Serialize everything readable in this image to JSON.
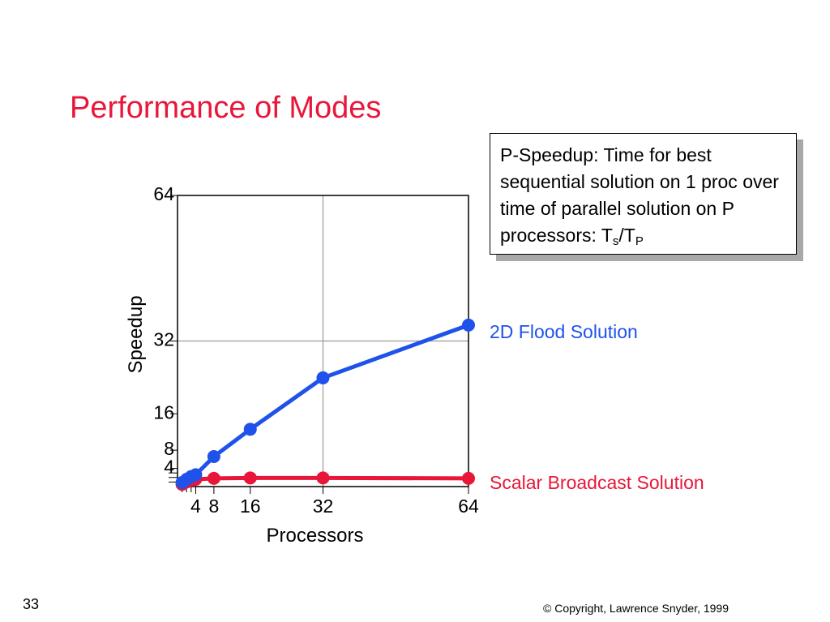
{
  "slide": {
    "title": "Performance of Modes",
    "number": "33",
    "copyright": "© Copyright, Lawrence Snyder, 1999"
  },
  "definition": {
    "text": "P-Speedup: Time for best sequential solution on 1 proc over time of parallel solution on P processors: T",
    "sub1": "s",
    "mid": "/T",
    "sub2": "P"
  },
  "colors": {
    "title": "#e8173a",
    "flood": "#1f52eb",
    "scalar": "#e8173a",
    "grid": "#9a9a9a"
  },
  "chart_data": {
    "type": "line",
    "xlabel": "Processors",
    "ylabel": "Speedup",
    "xlim": [
      0,
      64
    ],
    "ylim": [
      0,
      64
    ],
    "xticks": [
      4,
      8,
      16,
      32,
      64
    ],
    "xtick_labels": [
      "4",
      "8",
      "16",
      "32",
      "64"
    ],
    "yticks": [
      4,
      8,
      16,
      32,
      64
    ],
    "ytick_labels": [
      "4",
      "8",
      "16",
      "32",
      "64"
    ],
    "grid": true,
    "series": [
      {
        "name": "2D Flood Solution",
        "color": "#1f52eb",
        "x": [
          1,
          2,
          3,
          4,
          8,
          16,
          32,
          64
        ],
        "y": [
          0.9,
          1.6,
          2.2,
          2.6,
          6.6,
          12.6,
          23.9,
          35.5
        ]
      },
      {
        "name": "Scalar Broadcast Solution",
        "color": "#e8173a",
        "x": [
          1,
          2,
          3,
          4,
          8,
          16,
          32,
          64
        ],
        "y": [
          0.5,
          1.0,
          1.4,
          1.6,
          1.8,
          1.9,
          1.9,
          1.8
        ]
      }
    ]
  }
}
